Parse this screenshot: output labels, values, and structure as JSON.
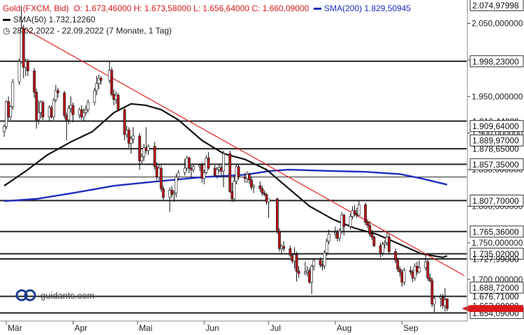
{
  "legend": {
    "title": "Gold (FXCM, Bid)",
    "ohlc": "O: 1.673,46000  H: 1.673,58000  L: 1.656,64000  C: 1.660,09000",
    "sma200": "SMA(200)  1.829,50945",
    "sma50": "SMA(50)  1.732,12260",
    "range": "28.02.2022 - 22.09.2022  (7 Monate, 1 Tag)"
  },
  "logo": {
    "text": "guidants.com",
    "icon": "guidants-logo-icon"
  },
  "colors": {
    "up": "#ffffff",
    "down": "#b8141a",
    "sma50": "#111111",
    "sma200": "#1f2dbf",
    "trendline": "#e02020",
    "hline": "#222222",
    "label_bg": "#ffffff",
    "label_border": "#333333"
  },
  "chart_data": {
    "type": "candlestick",
    "x_range": [
      "28.02.2022",
      "22.09.2022"
    ],
    "x_ticks": [
      {
        "label": "Mär",
        "date": "2022-03-01"
      },
      {
        "label": "Apr",
        "date": "2022-04-01"
      },
      {
        "label": "Mai",
        "date": "2022-05-01"
      },
      {
        "label": "Jun",
        "date": "2022-06-01"
      },
      {
        "label": "Jul",
        "date": "2022-07-01"
      },
      {
        "label": "Aug",
        "date": "2022-08-01"
      },
      {
        "label": "Sep",
        "date": "2022-09-01"
      }
    ],
    "ylim": [
      1643,
      2082
    ],
    "y_ticks": [
      {
        "value": 2050,
        "label": "2.050,000000"
      },
      {
        "value": 2000,
        "label": "2.000,000000"
      },
      {
        "value": 1950,
        "label": "1.950,000000"
      },
      {
        "value": 1900,
        "label": "1.900,000000"
      },
      {
        "value": 1850,
        "label": "1.850,000000"
      },
      {
        "value": 1800,
        "label": "1.800,000000"
      },
      {
        "value": 1750,
        "label": "1.750,000000"
      },
      {
        "value": 1700,
        "label": "1.700,000000"
      }
    ],
    "price_levels": [
      {
        "value": 2074.97998,
        "label": "2.074,97998"
      },
      {
        "value": 1998.23,
        "label": "1.998,23000"
      },
      {
        "value": 1916.44,
        "label": "1.916,44000"
      },
      {
        "value": 1909.64,
        "label": "1.909,64000"
      },
      {
        "value": 1889.97,
        "label": "1.889,97000"
      },
      {
        "value": 1878.65,
        "label": "1.878,65000"
      },
      {
        "value": 1857.35,
        "label": "1.857,35000"
      },
      {
        "value": 1807.7,
        "label": "1.807,70000"
      },
      {
        "value": 1765.36,
        "label": "1.765,36000"
      },
      {
        "value": 1735.02,
        "label": "1.735,02000"
      },
      {
        "value": 1727.99,
        "label": "1.727,99000"
      },
      {
        "value": 1688.72,
        "label": "1.688,72000"
      },
      {
        "value": 1676.71,
        "label": "1.676,71000"
      },
      {
        "value": 1663.8,
        "label": "1.663,80000"
      },
      {
        "value": 1654.09,
        "label": "1.654,09000"
      }
    ],
    "visible_level_labels": [
      "2.074,97998",
      "1.998,23000",
      "1.909,64000",
      "1.889,97000",
      "1.857,35000",
      "1.807,70000",
      "1.765,36000",
      "1.735,02000",
      "1.688,72000",
      "1.654,09000"
    ],
    "horizontal_lines": [
      1998.23,
      1916.44,
      1878.65,
      1857.35,
      1840,
      1807.7,
      1765.36,
      1735.02,
      1727.99,
      1676.71,
      1654.09
    ],
    "last_price": 1660.09,
    "trendline": {
      "from": [
        "2022-03-08",
        2045
      ],
      "to": [
        "2022-09-30",
        1705
      ]
    },
    "sma50": [
      [
        "2022-02-28",
        1828
      ],
      [
        "2022-03-10",
        1848
      ],
      [
        "2022-03-20",
        1870
      ],
      [
        "2022-03-31",
        1888
      ],
      [
        "2022-04-10",
        1902
      ],
      [
        "2022-04-20",
        1928
      ],
      [
        "2022-04-28",
        1940
      ],
      [
        "2022-05-05",
        1938
      ],
      [
        "2022-05-12",
        1932
      ],
      [
        "2022-05-20",
        1918
      ],
      [
        "2022-05-31",
        1890
      ],
      [
        "2022-06-10",
        1872
      ],
      [
        "2022-06-20",
        1864
      ],
      [
        "2022-06-30",
        1850
      ],
      [
        "2022-07-10",
        1825
      ],
      [
        "2022-07-20",
        1800
      ],
      [
        "2022-07-31",
        1782
      ],
      [
        "2022-08-10",
        1770
      ],
      [
        "2022-08-20",
        1762
      ],
      [
        "2022-08-31",
        1748
      ],
      [
        "2022-09-10",
        1735
      ],
      [
        "2022-09-20",
        1730
      ],
      [
        "2022-09-22",
        1732
      ]
    ],
    "sma200": [
      [
        "2022-02-28",
        1807
      ],
      [
        "2022-03-15",
        1810
      ],
      [
        "2022-04-01",
        1818
      ],
      [
        "2022-04-20",
        1828
      ],
      [
        "2022-05-10",
        1834
      ],
      [
        "2022-06-01",
        1840
      ],
      [
        "2022-06-20",
        1843
      ],
      [
        "2022-07-01",
        1848
      ],
      [
        "2022-07-10",
        1850
      ],
      [
        "2022-07-20",
        1849
      ],
      [
        "2022-08-01",
        1848
      ],
      [
        "2022-08-15",
        1847
      ],
      [
        "2022-08-31",
        1844
      ],
      [
        "2022-09-10",
        1838
      ],
      [
        "2022-09-22",
        1829.5
      ]
    ],
    "candles": [
      [
        "2022-02-28",
        1902,
        1912,
        1895,
        1909
      ],
      [
        "2022-03-01",
        1909,
        1945,
        1905,
        1943
      ],
      [
        "2022-03-02",
        1943,
        1950,
        1918,
        1922
      ],
      [
        "2022-03-03",
        1922,
        1938,
        1918,
        1936
      ],
      [
        "2022-03-04",
        1936,
        1974,
        1932,
        1970
      ],
      [
        "2022-03-07",
        1970,
        2002,
        1966,
        1998
      ],
      [
        "2022-03-08",
        1998,
        2074,
        1995,
        2043
      ],
      [
        "2022-03-09",
        2043,
        2048,
        1975,
        1990
      ],
      [
        "2022-03-10",
        1990,
        2002,
        1978,
        1998
      ],
      [
        "2022-03-11",
        1998,
        2002,
        1978,
        1985
      ],
      [
        "2022-03-14",
        1985,
        1989,
        1948,
        1956
      ],
      [
        "2022-03-15",
        1956,
        1961,
        1906,
        1918
      ],
      [
        "2022-03-16",
        1918,
        1945,
        1912,
        1928
      ],
      [
        "2022-03-17",
        1928,
        1945,
        1920,
        1942
      ],
      [
        "2022-03-18",
        1942,
        1945,
        1918,
        1922
      ],
      [
        "2022-03-21",
        1922,
        1938,
        1917,
        1935
      ],
      [
        "2022-03-22",
        1935,
        1938,
        1920,
        1922
      ],
      [
        "2022-03-23",
        1922,
        1948,
        1918,
        1945
      ],
      [
        "2022-03-24",
        1945,
        1966,
        1942,
        1958
      ],
      [
        "2022-03-25",
        1958,
        1962,
        1948,
        1955
      ],
      [
        "2022-03-28",
        1955,
        1958,
        1920,
        1924
      ],
      [
        "2022-03-29",
        1924,
        1928,
        1890,
        1918
      ],
      [
        "2022-03-30",
        1918,
        1938,
        1912,
        1934
      ],
      [
        "2022-03-31",
        1934,
        1950,
        1928,
        1938
      ],
      [
        "2022-04-01",
        1938,
        1942,
        1915,
        1925
      ],
      [
        "2022-04-04",
        1925,
        1935,
        1920,
        1932
      ],
      [
        "2022-04-05",
        1932,
        1938,
        1918,
        1922
      ],
      [
        "2022-04-06",
        1922,
        1934,
        1916,
        1928
      ],
      [
        "2022-04-07",
        1928,
        1938,
        1924,
        1932
      ],
      [
        "2022-04-08",
        1932,
        1946,
        1928,
        1942
      ],
      [
        "2022-04-11",
        1942,
        1962,
        1938,
        1958
      ],
      [
        "2022-04-12",
        1958,
        1978,
        1952,
        1968
      ],
      [
        "2022-04-13",
        1968,
        1980,
        1960,
        1975
      ],
      [
        "2022-04-14",
        1975,
        1978,
        1966,
        1972
      ],
      [
        "2022-04-18",
        1972,
        1998,
        1968,
        1986
      ],
      [
        "2022-04-19",
        1986,
        1990,
        1950,
        1953
      ],
      [
        "2022-04-20",
        1953,
        1960,
        1938,
        1946
      ],
      [
        "2022-04-21",
        1946,
        1957,
        1940,
        1952
      ],
      [
        "2022-04-22",
        1952,
        1955,
        1930,
        1932
      ],
      [
        "2022-04-25",
        1932,
        1936,
        1890,
        1898
      ],
      [
        "2022-04-26",
        1898,
        1910,
        1894,
        1904
      ],
      [
        "2022-04-27",
        1904,
        1908,
        1880,
        1886
      ],
      [
        "2022-04-28",
        1886,
        1896,
        1872,
        1892
      ],
      [
        "2022-04-29",
        1892,
        1908,
        1886,
        1896
      ],
      [
        "2022-05-02",
        1896,
        1900,
        1850,
        1862
      ],
      [
        "2022-05-03",
        1862,
        1872,
        1858,
        1868
      ],
      [
        "2022-05-04",
        1868,
        1885,
        1862,
        1880
      ],
      [
        "2022-05-05",
        1880,
        1908,
        1872,
        1876
      ],
      [
        "2022-05-06",
        1876,
        1885,
        1870,
        1882
      ],
      [
        "2022-05-09",
        1882,
        1888,
        1850,
        1854
      ],
      [
        "2022-05-10",
        1854,
        1860,
        1836,
        1840
      ],
      [
        "2022-05-11",
        1840,
        1858,
        1836,
        1852
      ],
      [
        "2022-05-12",
        1852,
        1856,
        1820,
        1824
      ],
      [
        "2022-05-13",
        1824,
        1828,
        1808,
        1812
      ],
      [
        "2022-05-16",
        1812,
        1826,
        1792,
        1822
      ],
      [
        "2022-05-17",
        1822,
        1828,
        1812,
        1816
      ],
      [
        "2022-05-18",
        1816,
        1822,
        1806,
        1818
      ],
      [
        "2022-05-19",
        1818,
        1844,
        1812,
        1840
      ],
      [
        "2022-05-20",
        1840,
        1849,
        1835,
        1846
      ],
      [
        "2022-05-23",
        1846,
        1865,
        1842,
        1852
      ],
      [
        "2022-05-24",
        1852,
        1869,
        1848,
        1866
      ],
      [
        "2022-05-25",
        1866,
        1868,
        1845,
        1852
      ],
      [
        "2022-05-26",
        1852,
        1856,
        1840,
        1850
      ],
      [
        "2022-05-27",
        1850,
        1858,
        1846,
        1854
      ],
      [
        "2022-05-30",
        1854,
        1858,
        1848,
        1856
      ],
      [
        "2022-05-31",
        1856,
        1860,
        1832,
        1838
      ],
      [
        "2022-06-01",
        1838,
        1850,
        1830,
        1846
      ],
      [
        "2022-06-02",
        1846,
        1870,
        1844,
        1866
      ],
      [
        "2022-06-03",
        1866,
        1874,
        1850,
        1852
      ],
      [
        "2022-06-06",
        1852,
        1856,
        1840,
        1842
      ],
      [
        "2022-06-07",
        1842,
        1854,
        1838,
        1850
      ],
      [
        "2022-06-08",
        1850,
        1858,
        1846,
        1853
      ],
      [
        "2022-06-09",
        1853,
        1856,
        1840,
        1848
      ],
      [
        "2022-06-10",
        1848,
        1876,
        1826,
        1872
      ],
      [
        "2022-06-13",
        1872,
        1876,
        1818,
        1820
      ],
      [
        "2022-06-14",
        1820,
        1832,
        1806,
        1810
      ],
      [
        "2022-06-15",
        1810,
        1842,
        1806,
        1834
      ],
      [
        "2022-06-16",
        1834,
        1858,
        1830,
        1854
      ],
      [
        "2022-06-17",
        1854,
        1858,
        1836,
        1840
      ],
      [
        "2022-06-20",
        1840,
        1846,
        1832,
        1838
      ],
      [
        "2022-06-21",
        1838,
        1848,
        1832,
        1844
      ],
      [
        "2022-06-22",
        1844,
        1846,
        1830,
        1836
      ],
      [
        "2022-06-23",
        1836,
        1840,
        1822,
        1826
      ],
      [
        "2022-06-24",
        1826,
        1830,
        1818,
        1828
      ],
      [
        "2022-06-27",
        1828,
        1834,
        1820,
        1824
      ],
      [
        "2022-06-28",
        1824,
        1828,
        1814,
        1818
      ],
      [
        "2022-06-29",
        1818,
        1822,
        1814,
        1816
      ],
      [
        "2022-06-30",
        1816,
        1818,
        1802,
        1806
      ],
      [
        "2022-07-01",
        1806,
        1810,
        1784,
        1810
      ],
      [
        "2022-07-05",
        1810,
        1812,
        1762,
        1766
      ],
      [
        "2022-07-06",
        1766,
        1770,
        1738,
        1742
      ],
      [
        "2022-07-07",
        1742,
        1748,
        1736,
        1745
      ],
      [
        "2022-07-08",
        1745,
        1752,
        1738,
        1742
      ],
      [
        "2022-07-11",
        1742,
        1746,
        1730,
        1733
      ],
      [
        "2022-07-12",
        1733,
        1736,
        1722,
        1725
      ],
      [
        "2022-07-13",
        1725,
        1744,
        1715,
        1734
      ],
      [
        "2022-07-14",
        1734,
        1738,
        1697,
        1711
      ],
      [
        "2022-07-15",
        1711,
        1718,
        1702,
        1708
      ],
      [
        "2022-07-18",
        1708,
        1724,
        1706,
        1710
      ],
      [
        "2022-07-19",
        1710,
        1718,
        1704,
        1712
      ],
      [
        "2022-07-20",
        1712,
        1716,
        1694,
        1696
      ],
      [
        "2022-07-21",
        1696,
        1720,
        1680,
        1718
      ],
      [
        "2022-07-22",
        1718,
        1728,
        1712,
        1726
      ],
      [
        "2022-07-25",
        1726,
        1730,
        1716,
        1720
      ],
      [
        "2022-07-26",
        1720,
        1726,
        1712,
        1718
      ],
      [
        "2022-07-27",
        1718,
        1740,
        1714,
        1736
      ],
      [
        "2022-07-28",
        1736,
        1756,
        1732,
        1752
      ],
      [
        "2022-07-29",
        1752,
        1768,
        1748,
        1762
      ],
      [
        "2022-08-01",
        1762,
        1772,
        1756,
        1764
      ],
      [
        "2022-08-02",
        1764,
        1768,
        1752,
        1756
      ],
      [
        "2022-08-03",
        1756,
        1770,
        1752,
        1766
      ],
      [
        "2022-08-04",
        1766,
        1792,
        1762,
        1788
      ],
      [
        "2022-08-05",
        1788,
        1790,
        1760,
        1772
      ],
      [
        "2022-08-08",
        1772,
        1790,
        1768,
        1786
      ],
      [
        "2022-08-09",
        1786,
        1800,
        1782,
        1794
      ],
      [
        "2022-08-10",
        1794,
        1802,
        1786,
        1790
      ],
      [
        "2022-08-11",
        1790,
        1798,
        1784,
        1788
      ],
      [
        "2022-08-12",
        1788,
        1808,
        1786,
        1802
      ],
      [
        "2022-08-15",
        1802,
        1805,
        1774,
        1778
      ],
      [
        "2022-08-16",
        1778,
        1782,
        1770,
        1774
      ],
      [
        "2022-08-17",
        1774,
        1780,
        1758,
        1762
      ],
      [
        "2022-08-18",
        1762,
        1768,
        1754,
        1758
      ],
      [
        "2022-08-19",
        1758,
        1760,
        1744,
        1746
      ],
      [
        "2022-08-22",
        1746,
        1750,
        1730,
        1736
      ],
      [
        "2022-08-23",
        1736,
        1752,
        1732,
        1748
      ],
      [
        "2022-08-24",
        1748,
        1754,
        1742,
        1750
      ],
      [
        "2022-08-25",
        1750,
        1764,
        1746,
        1758
      ],
      [
        "2022-08-26",
        1758,
        1762,
        1734,
        1738
      ],
      [
        "2022-08-29",
        1738,
        1742,
        1722,
        1726
      ],
      [
        "2022-08-30",
        1726,
        1730,
        1710,
        1714
      ],
      [
        "2022-08-31",
        1714,
        1718,
        1704,
        1710
      ],
      [
        "2022-09-01",
        1710,
        1714,
        1690,
        1696
      ],
      [
        "2022-09-02",
        1696,
        1716,
        1692,
        1712
      ],
      [
        "2022-09-05",
        1712,
        1718,
        1706,
        1710
      ],
      [
        "2022-09-06",
        1710,
        1714,
        1696,
        1702
      ],
      [
        "2022-09-07",
        1702,
        1722,
        1698,
        1718
      ],
      [
        "2022-09-08",
        1718,
        1724,
        1706,
        1710
      ],
      [
        "2022-09-09",
        1710,
        1726,
        1708,
        1716
      ],
      [
        "2022-09-12",
        1716,
        1734,
        1712,
        1724
      ],
      [
        "2022-09-13",
        1724,
        1728,
        1698,
        1702
      ],
      [
        "2022-09-14",
        1702,
        1708,
        1696,
        1698
      ],
      [
        "2022-09-15",
        1698,
        1702,
        1662,
        1666
      ],
      [
        "2022-09-16",
        1666,
        1678,
        1655,
        1674
      ],
      [
        "2022-09-19",
        1674,
        1680,
        1662,
        1676
      ],
      [
        "2022-09-20",
        1676,
        1680,
        1660,
        1664
      ],
      [
        "2022-09-21",
        1664,
        1688,
        1656,
        1672
      ],
      [
        "2022-09-22",
        1673.46,
        1673.58,
        1656.64,
        1660.09
      ]
    ]
  }
}
